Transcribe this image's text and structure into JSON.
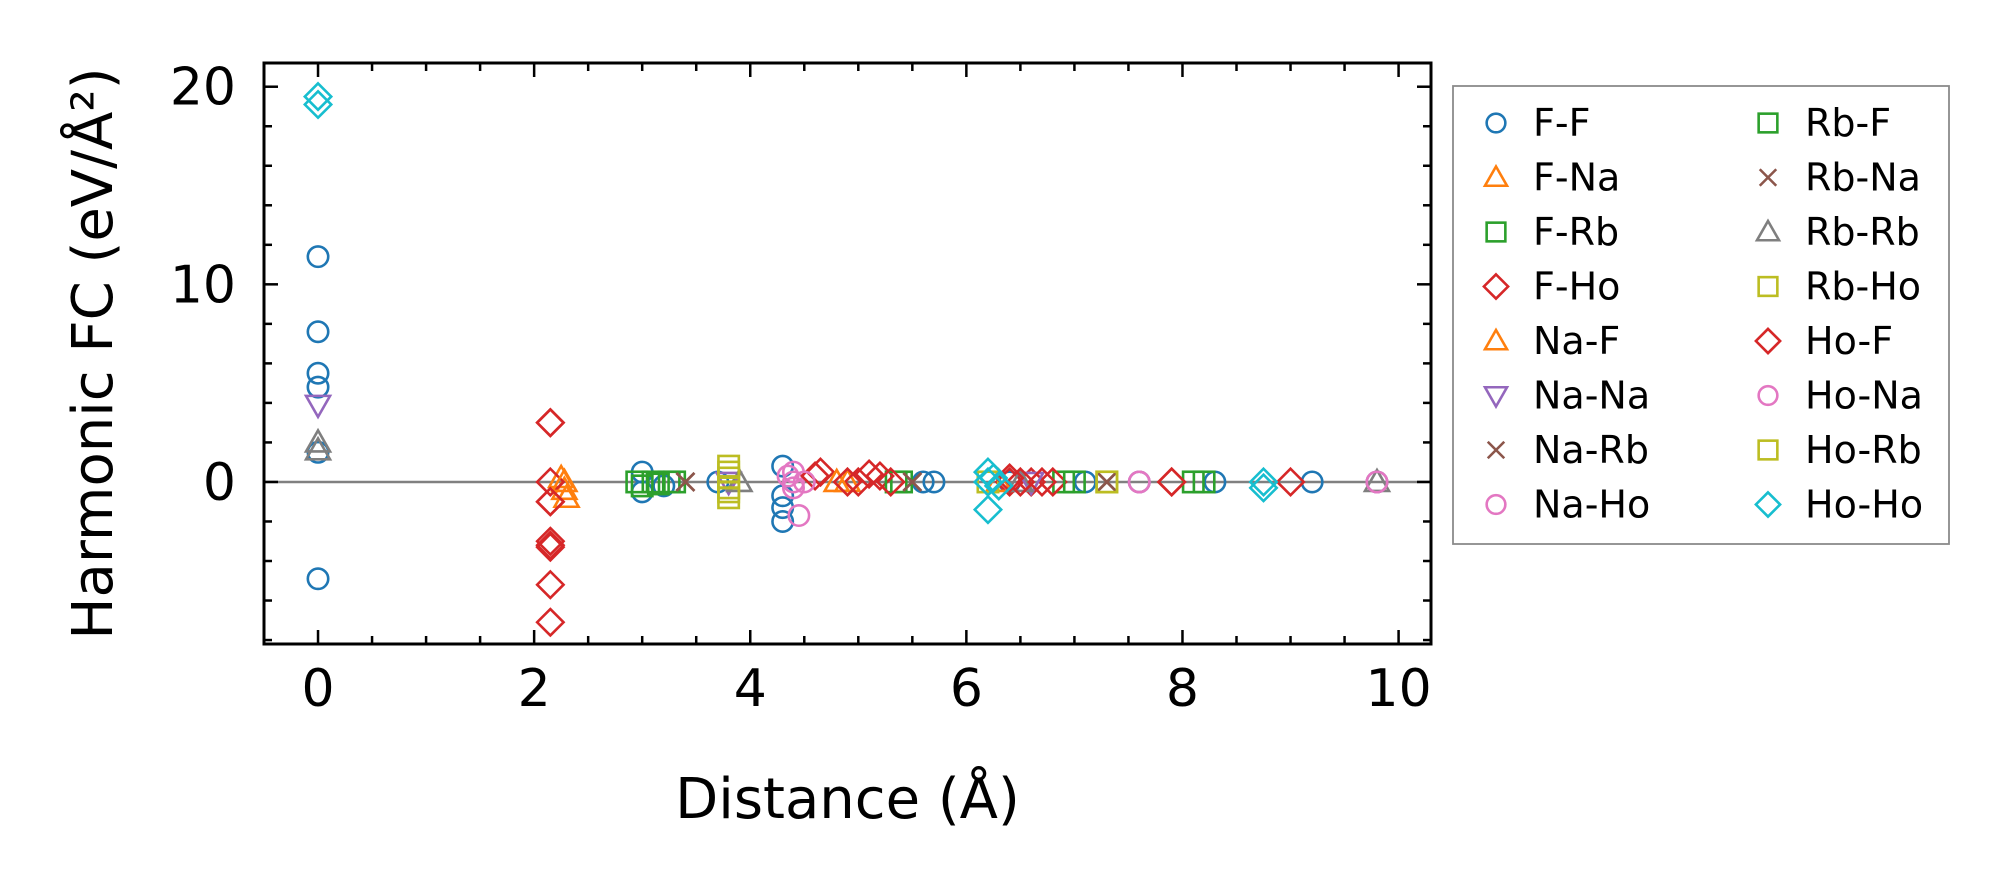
{
  "chart_data": {
    "type": "scatter",
    "title": "",
    "xlabel": "Distance (Å)",
    "ylabel": "Harmonic FC (eV/Å²)",
    "xlim": [
      -0.5,
      10.3
    ],
    "ylim": [
      -8.2,
      21.2
    ],
    "xticks": [
      0,
      2,
      4,
      6,
      8,
      10
    ],
    "xtick_labels": [
      "0",
      "2",
      "4",
      "6",
      "8",
      "10"
    ],
    "yticks": [
      0,
      10,
      20
    ],
    "ytick_labels": [
      "0",
      "10",
      "20"
    ],
    "grid": false,
    "zero_line": true,
    "legend_position": "outside-right",
    "series": [
      {
        "name": "F-F",
        "marker": "circle",
        "color": "#1f77b4",
        "points": [
          [
            0,
            11.4
          ],
          [
            0,
            7.6
          ],
          [
            0,
            5.5
          ],
          [
            0,
            4.8
          ],
          [
            0,
            1.5
          ],
          [
            0,
            -4.9
          ],
          [
            3.0,
            0.5
          ],
          [
            3.0,
            -0.5
          ],
          [
            3.2,
            -0.2
          ],
          [
            3.7,
            0
          ],
          [
            4.3,
            0.8
          ],
          [
            4.3,
            -0.7
          ],
          [
            4.3,
            -1.3
          ],
          [
            4.3,
            -2.0
          ],
          [
            5.6,
            0
          ],
          [
            5.7,
            0
          ],
          [
            6.4,
            0
          ],
          [
            7.1,
            0
          ],
          [
            7.6,
            0
          ],
          [
            8.3,
            0
          ],
          [
            9.2,
            0
          ],
          [
            9.8,
            0
          ]
        ]
      },
      {
        "name": "F-Na",
        "marker": "triangle-up",
        "color": "#ff7f0e",
        "points": [
          [
            2.25,
            0.2
          ],
          [
            2.28,
            -0.4
          ],
          [
            2.3,
            -0.8
          ],
          [
            4.9,
            0
          ]
        ]
      },
      {
        "name": "F-Rb",
        "marker": "square",
        "color": "#2ca02c",
        "points": [
          [
            2.95,
            0
          ],
          [
            3.1,
            0
          ],
          [
            3.3,
            0
          ],
          [
            5.4,
            0
          ],
          [
            6.9,
            0
          ],
          [
            8.2,
            0
          ]
        ]
      },
      {
        "name": "F-Ho",
        "marker": "diamond",
        "color": "#d62728",
        "points": [
          [
            2.15,
            3.0
          ],
          [
            2.15,
            0
          ],
          [
            2.15,
            -1.0
          ],
          [
            2.15,
            -3.0
          ],
          [
            2.15,
            -3.3
          ],
          [
            2.15,
            -5.2
          ],
          [
            2.15,
            -7.1
          ],
          [
            4.65,
            0.5
          ],
          [
            5.0,
            0
          ],
          [
            5.2,
            0.3
          ],
          [
            6.4,
            0
          ],
          [
            6.6,
            0
          ],
          [
            6.8,
            0
          ],
          [
            7.9,
            0
          ],
          [
            9.0,
            0
          ]
        ]
      },
      {
        "name": "Na-F",
        "marker": "triangle-up",
        "color": "#ff7f0e",
        "points": [
          [
            2.28,
            0
          ],
          [
            4.8,
            0
          ],
          [
            6.3,
            0
          ]
        ]
      },
      {
        "name": "Na-Na",
        "marker": "triangle-down",
        "color": "#9467bd",
        "points": [
          [
            0,
            3.9
          ],
          [
            3.8,
            0
          ],
          [
            6.6,
            0
          ]
        ]
      },
      {
        "name": "Na-Rb",
        "marker": "x",
        "color": "#8c564b",
        "points": [
          [
            3.4,
            0
          ],
          [
            5.5,
            0
          ],
          [
            7.3,
            0
          ]
        ]
      },
      {
        "name": "Na-Ho",
        "marker": "circle",
        "color": "#e377c2",
        "points": [
          [
            4.4,
            0.5
          ],
          [
            4.4,
            0
          ],
          [
            4.45,
            -1.7
          ],
          [
            7.6,
            0
          ],
          [
            9.8,
            0
          ]
        ]
      },
      {
        "name": "Rb-F",
        "marker": "square",
        "color": "#2ca02c",
        "points": [
          [
            3.0,
            -0.2
          ],
          [
            3.15,
            -0.1
          ],
          [
            3.25,
            0
          ],
          [
            5.35,
            0
          ],
          [
            7.0,
            0
          ],
          [
            8.1,
            0
          ]
        ]
      },
      {
        "name": "Rb-Na",
        "marker": "x",
        "color": "#8c564b",
        "points": [
          [
            3.4,
            0
          ],
          [
            5.5,
            0
          ],
          [
            7.3,
            0
          ]
        ]
      },
      {
        "name": "Rb-Rb",
        "marker": "triangle-up",
        "color": "#7f7f7f",
        "points": [
          [
            0,
            2.0
          ],
          [
            0,
            1.6
          ],
          [
            3.9,
            0
          ],
          [
            6.5,
            0
          ],
          [
            9.8,
            0
          ]
        ]
      },
      {
        "name": "Rb-Ho",
        "marker": "square",
        "color": "#bcbd22",
        "points": [
          [
            3.8,
            0.8
          ],
          [
            3.8,
            0.2
          ],
          [
            3.8,
            -0.3
          ],
          [
            3.8,
            -0.8
          ],
          [
            6.2,
            0
          ],
          [
            7.3,
            0
          ]
        ]
      },
      {
        "name": "Ho-F",
        "marker": "diamond",
        "color": "#d62728",
        "points": [
          [
            2.15,
            3.0
          ],
          [
            2.15,
            -1.0
          ],
          [
            2.15,
            -3.2
          ],
          [
            4.6,
            0.3
          ],
          [
            4.9,
            0
          ],
          [
            5.1,
            0.4
          ],
          [
            5.3,
            0
          ],
          [
            6.4,
            0.2
          ],
          [
            6.5,
            0
          ],
          [
            6.7,
            0
          ],
          [
            7.9,
            0
          ]
        ]
      },
      {
        "name": "Ho-Na",
        "marker": "circle",
        "color": "#e377c2",
        "points": [
          [
            4.35,
            0.3
          ],
          [
            4.4,
            -0.3
          ],
          [
            4.5,
            0
          ],
          [
            7.6,
            0
          ],
          [
            9.8,
            0
          ]
        ]
      },
      {
        "name": "Ho-Rb",
        "marker": "square",
        "color": "#bcbd22",
        "points": [
          [
            3.8,
            0.5
          ],
          [
            3.8,
            -0.5
          ],
          [
            7.3,
            0
          ]
        ]
      },
      {
        "name": "Ho-Ho",
        "marker": "diamond",
        "color": "#17becf",
        "points": [
          [
            0,
            19.5
          ],
          [
            0,
            19.1
          ],
          [
            6.2,
            0.5
          ],
          [
            6.2,
            0
          ],
          [
            6.2,
            -1.4
          ],
          [
            6.25,
            0.2
          ],
          [
            6.3,
            -0.2
          ],
          [
            8.75,
            0
          ],
          [
            8.75,
            -0.3
          ]
        ]
      }
    ]
  }
}
